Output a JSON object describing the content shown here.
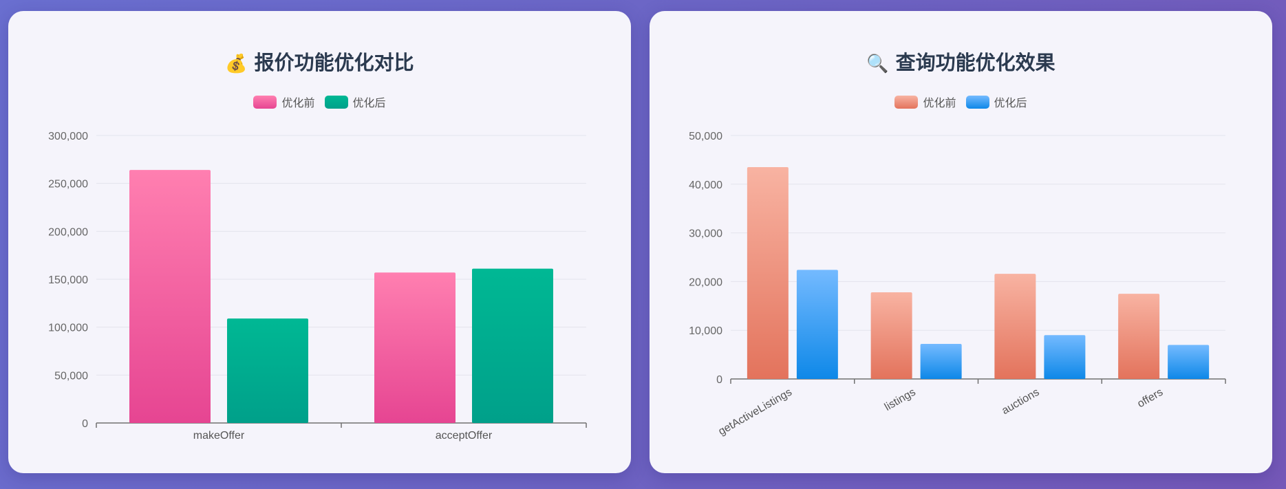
{
  "chart_data": [
    {
      "type": "bar",
      "title": "报价功能优化对比",
      "title_icon": "💰",
      "icon_name": "money-bag-icon",
      "categories": [
        "makeOffer",
        "acceptOffer"
      ],
      "series": [
        {
          "name": "优化前",
          "values": [
            264000,
            157000
          ],
          "color_top": "#ff7fb0",
          "color_bottom": "#e64592"
        },
        {
          "name": "优化后",
          "values": [
            109000,
            161000
          ],
          "color_top": "#00b894",
          "color_bottom": "#00a08a"
        }
      ],
      "yticks": [
        "0",
        "50,000",
        "100,000",
        "150,000",
        "200,000",
        "250,000",
        "300,000"
      ],
      "ylim": [
        0,
        300000
      ],
      "grid": true,
      "legend_position": "top-center",
      "xlabel_rotated": false
    },
    {
      "type": "bar",
      "title": "查询功能优化效果",
      "title_icon": "🔍",
      "icon_name": "magnifier-icon",
      "categories": [
        "getActiveListings",
        "listings",
        "auctions",
        "offers"
      ],
      "series": [
        {
          "name": "优化前",
          "values": [
            43500,
            17800,
            21600,
            17500
          ],
          "color_top": "#f8b3a2",
          "color_bottom": "#e3735c"
        },
        {
          "name": "优化后",
          "values": [
            22400,
            7200,
            9000,
            7000
          ],
          "color_top": "#74baff",
          "color_bottom": "#0e88e8"
        }
      ],
      "yticks": [
        "0",
        "10,000",
        "20,000",
        "30,000",
        "40,000",
        "50,000"
      ],
      "ylim": [
        0,
        50000
      ],
      "grid": true,
      "legend_position": "top-center",
      "xlabel_rotated": true
    }
  ]
}
